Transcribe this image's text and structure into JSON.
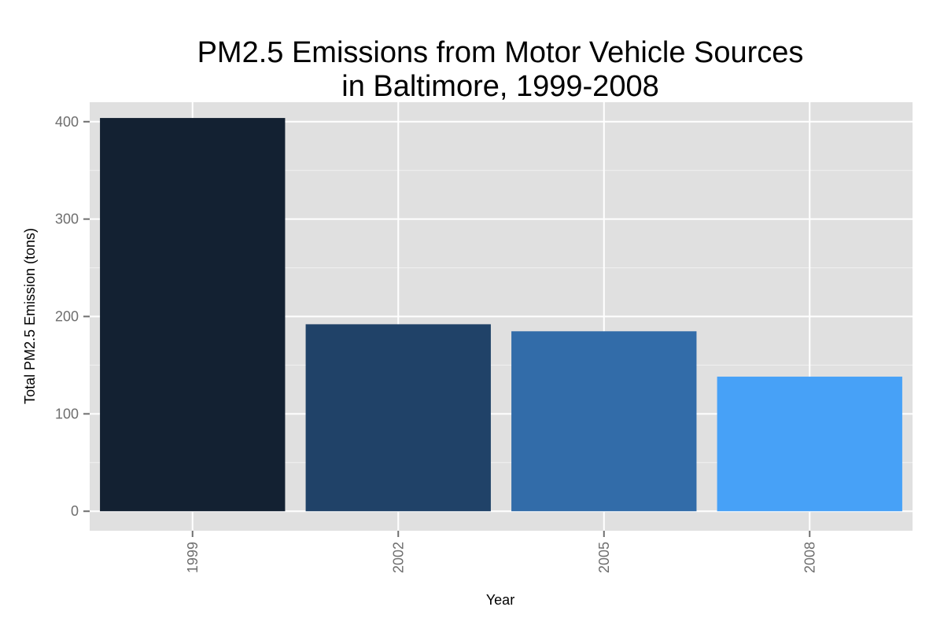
{
  "chart_data": {
    "type": "bar",
    "title_lines": [
      "PM2.5 Emissions from Motor Vehicle Sources",
      "in Baltimore, 1999-2008"
    ],
    "xlabel": "Year",
    "ylabel": "Total PM2.5 Emission (tons)",
    "categories": [
      "1999",
      "2002",
      "2005",
      "2008"
    ],
    "values": [
      403.8,
      192.0,
      184.8,
      138.2
    ],
    "bar_colors": [
      "#132132",
      "#204268",
      "#326ca9",
      "#47a1f7"
    ],
    "ylim": [
      -20,
      420
    ],
    "yticks": [
      0,
      100,
      200,
      300,
      400
    ],
    "ytick_labels": [
      "0",
      "100",
      "200",
      "300",
      "400"
    ],
    "grid": true,
    "legend": "none",
    "panel_background": "#e0e0e0",
    "grid_color": "#ffffff"
  }
}
